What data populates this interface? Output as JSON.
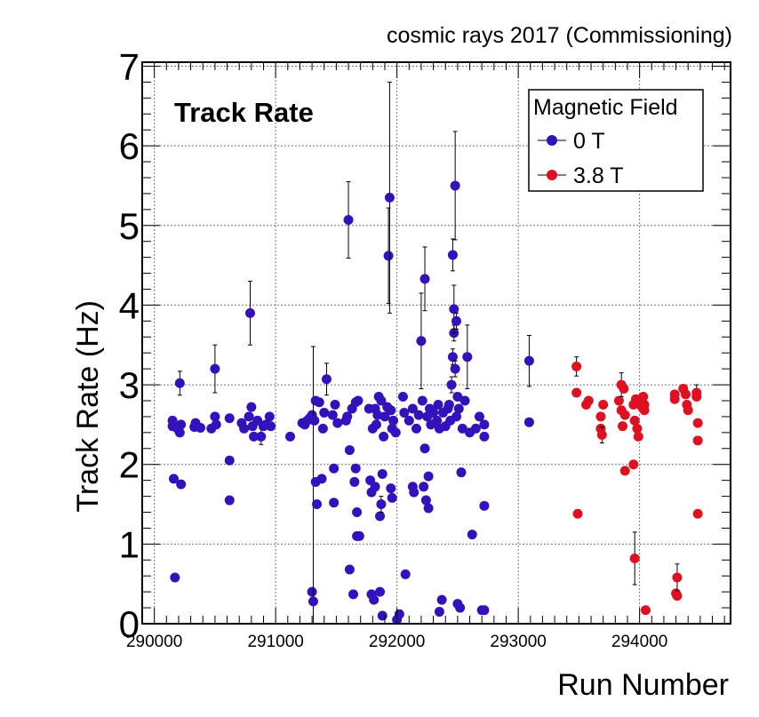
{
  "chart_data": {
    "type": "scatter",
    "title": "cosmic rays 2017 (Commissioning)",
    "annotation": "Track Rate",
    "xlabel": "Run Number",
    "ylabel": "Track Rate (Hz)",
    "xlim": [
      289900,
      294750
    ],
    "ylim": [
      0,
      7.05
    ],
    "xticks": [
      290000,
      291000,
      292000,
      293000,
      294000
    ],
    "xtick_labels": [
      "290000",
      "291000",
      "292000",
      "293000",
      "294000"
    ],
    "yticks": [
      0,
      1,
      2,
      3,
      4,
      5,
      6,
      7
    ],
    "ytick_labels": [
      "0",
      "1",
      "2",
      "3",
      "4",
      "5",
      "6",
      "7"
    ],
    "grid": true,
    "legend": {
      "title": "Magnetic Field",
      "position": "top-right",
      "entries": [
        "0 T",
        "3.8 T"
      ]
    },
    "series": [
      {
        "name": "0 T",
        "color": "#3311bb",
        "points": [
          [
            290150,
            2.48,
            0.05
          ],
          [
            290150,
            2.55,
            0.05
          ],
          [
            290160,
            1.82,
            0.05
          ],
          [
            290170,
            0.58,
            0.03
          ],
          [
            290190,
            2.45,
            0.05
          ],
          [
            290210,
            2.4,
            0.05
          ],
          [
            290210,
            3.02,
            0.15
          ],
          [
            290220,
            1.75,
            0.05
          ],
          [
            290220,
            2.5,
            0.05
          ],
          [
            290330,
            2.47,
            0.05
          ],
          [
            290340,
            2.52,
            0.05
          ],
          [
            290380,
            2.46,
            0.05
          ],
          [
            290470,
            2.45,
            0.05
          ],
          [
            290500,
            2.6,
            0.05
          ],
          [
            290500,
            3.2,
            0.3
          ],
          [
            290510,
            2.5,
            0.05
          ],
          [
            290620,
            2.58,
            0.05
          ],
          [
            290620,
            2.05,
            0.05
          ],
          [
            290620,
            1.55,
            0.05
          ],
          [
            290720,
            2.52,
            0.05
          ],
          [
            290740,
            2.45,
            0.05
          ],
          [
            290780,
            2.6,
            0.05
          ],
          [
            290790,
            3.9,
            0.4
          ],
          [
            290800,
            2.72,
            0.05
          ],
          [
            290810,
            2.48,
            0.05
          ],
          [
            290820,
            2.35,
            0.05
          ],
          [
            290850,
            2.55,
            0.05
          ],
          [
            290880,
            2.35,
            0.1
          ],
          [
            290900,
            2.48,
            0.05
          ],
          [
            290920,
            2.5,
            0.05
          ],
          [
            290950,
            2.6,
            0.05
          ],
          [
            290960,
            2.48,
            0.05
          ],
          [
            291120,
            2.35,
            0.05
          ],
          [
            291220,
            2.52,
            0.05
          ],
          [
            291240,
            2.5,
            0.05
          ],
          [
            291260,
            2.55,
            0.05
          ],
          [
            291280,
            2.58,
            0.05
          ],
          [
            291300,
            2.62,
            0.05
          ],
          [
            291300,
            0.4,
            0.05
          ],
          [
            291310,
            0.28,
            3.2
          ],
          [
            291320,
            2.55,
            0.05
          ],
          [
            291330,
            2.8,
            0.05
          ],
          [
            291330,
            1.78,
            0.05
          ],
          [
            291340,
            1.5,
            0.05
          ],
          [
            291360,
            2.78,
            0.05
          ],
          [
            291380,
            1.82,
            0.05
          ],
          [
            291390,
            2.45,
            0.05
          ],
          [
            291400,
            2.65,
            0.05
          ],
          [
            291420,
            3.07,
            0.2
          ],
          [
            291470,
            2.62,
            0.05
          ],
          [
            291480,
            1.52,
            0.05
          ],
          [
            291480,
            1.95,
            0.05
          ],
          [
            291490,
            2.75,
            0.05
          ],
          [
            291510,
            2.52,
            0.05
          ],
          [
            291580,
            2.55,
            0.05
          ],
          [
            291590,
            2.6,
            0.05
          ],
          [
            291600,
            5.07,
            0.48
          ],
          [
            291610,
            0.68,
            0.05
          ],
          [
            291610,
            2.18,
            0.05
          ],
          [
            291630,
            2.7,
            0.05
          ],
          [
            291640,
            0.37,
            0.05
          ],
          [
            291650,
            1.78,
            0.05
          ],
          [
            291660,
            2.78,
            0.05
          ],
          [
            291660,
            1.95,
            0.05
          ],
          [
            291670,
            1.1,
            0.05
          ],
          [
            291670,
            1.4,
            0.05
          ],
          [
            291680,
            2.8,
            0.05
          ],
          [
            291690,
            1.1,
            0.05
          ],
          [
            291770,
            2.7,
            0.05
          ],
          [
            291780,
            1.8,
            0.05
          ],
          [
            291790,
            0.37,
            0.05
          ],
          [
            291790,
            1.65,
            0.05
          ],
          [
            291800,
            2.45,
            0.05
          ],
          [
            291810,
            0.3,
            0.05
          ],
          [
            291820,
            2.7,
            0.05
          ],
          [
            291820,
            1.72,
            0.05
          ],
          [
            291830,
            2.5,
            0.05
          ],
          [
            291840,
            2.62,
            0.05
          ],
          [
            291850,
            2.85,
            0.05
          ],
          [
            291860,
            0.4,
            0.05
          ],
          [
            291860,
            1.35,
            0.05
          ],
          [
            291870,
            2.8,
            0.05
          ],
          [
            291870,
            1.5,
            0.1
          ],
          [
            291880,
            0.1,
            0.05
          ],
          [
            291880,
            1.88,
            0.05
          ],
          [
            291890,
            2.35,
            0.05
          ],
          [
            291900,
            2.6,
            0.05
          ],
          [
            291920,
            2.72,
            0.05
          ],
          [
            291930,
            4.62,
            0.6
          ],
          [
            291940,
            5.35,
            1.45
          ],
          [
            291950,
            2.68,
            0.05
          ],
          [
            291950,
            1.7,
            0.05
          ],
          [
            291960,
            2.45,
            0.05
          ],
          [
            291960,
            1.58,
            0.05
          ],
          [
            291970,
            2.55,
            0.05
          ],
          [
            291990,
            2.4,
            0.05
          ],
          [
            292000,
            0.05,
            0.05
          ],
          [
            292020,
            0.12,
            0.05
          ],
          [
            292050,
            2.85,
            0.05
          ],
          [
            292060,
            2.65,
            0.05
          ],
          [
            292070,
            0.62,
            0.05
          ],
          [
            292100,
            2.55,
            0.05
          ],
          [
            292130,
            2.7,
            0.05
          ],
          [
            292130,
            1.72,
            0.05
          ],
          [
            292140,
            1.65,
            0.05
          ],
          [
            292160,
            2.45,
            0.05
          ],
          [
            292180,
            2.62,
            0.05
          ],
          [
            292200,
            3.55,
            0.6
          ],
          [
            292210,
            2.8,
            0.05
          ],
          [
            292220,
            1.72,
            0.05
          ],
          [
            292230,
            4.33,
            0.4
          ],
          [
            292230,
            2.2,
            0.05
          ],
          [
            292240,
            1.55,
            0.05
          ],
          [
            292250,
            2.6,
            0.05
          ],
          [
            292260,
            1.85,
            0.05
          ],
          [
            292260,
            1.45,
            0.05
          ],
          [
            292270,
            2.7,
            0.05
          ],
          [
            292280,
            2.5,
            0.05
          ],
          [
            292300,
            2.65,
            0.05
          ],
          [
            292330,
            2.55,
            0.05
          ],
          [
            292340,
            2.75,
            0.05
          ],
          [
            292350,
            2.45,
            0.05
          ],
          [
            292350,
            0.15,
            0.05
          ],
          [
            292370,
            0.3,
            0.05
          ],
          [
            292380,
            2.65,
            0.05
          ],
          [
            292400,
            2.48,
            0.05
          ],
          [
            292420,
            2.7,
            0.05
          ],
          [
            292430,
            2.75,
            0.05
          ],
          [
            292440,
            2.55,
            0.05
          ],
          [
            292450,
            3.0,
            0.1
          ],
          [
            292460,
            3.35,
            0.1
          ],
          [
            292460,
            4.63,
            0.2
          ],
          [
            292470,
            3.65,
            0.1
          ],
          [
            292470,
            3.95,
            0.3
          ],
          [
            292480,
            5.5,
            0.68
          ],
          [
            292480,
            3.2,
            0.1
          ],
          [
            292490,
            3.8,
            0.1
          ],
          [
            292490,
            2.6,
            0.05
          ],
          [
            292500,
            0.25,
            0.05
          ],
          [
            292500,
            2.85,
            0.05
          ],
          [
            292510,
            2.7,
            0.05
          ],
          [
            292520,
            0.2,
            0.05
          ],
          [
            292530,
            1.9,
            0.05
          ],
          [
            292540,
            2.45,
            0.05
          ],
          [
            292560,
            2.8,
            0.05
          ],
          [
            292580,
            3.35,
            0.4
          ],
          [
            292600,
            2.4,
            0.05
          ],
          [
            292620,
            1.12,
            0.05
          ],
          [
            292650,
            2.45,
            0.05
          ],
          [
            292680,
            2.6,
            0.05
          ],
          [
            292700,
            0.17,
            0.05
          ],
          [
            292720,
            2.5,
            0.05
          ],
          [
            292720,
            2.35,
            0.05
          ],
          [
            292720,
            1.48,
            0.05
          ],
          [
            292720,
            0.17,
            0.05
          ],
          [
            293090,
            3.3,
            0.32
          ],
          [
            293090,
            2.53,
            0.05
          ]
        ]
      },
      {
        "name": "3.8 T",
        "color": "#dd1122",
        "points": [
          [
            293480,
            3.23,
            0.12
          ],
          [
            293480,
            2.9,
            0.05
          ],
          [
            293490,
            1.38,
            0.05
          ],
          [
            293560,
            2.75,
            0.05
          ],
          [
            293580,
            2.8,
            0.05
          ],
          [
            293680,
            2.6,
            0.05
          ],
          [
            293680,
            2.45,
            0.05
          ],
          [
            293690,
            2.37,
            0.1
          ],
          [
            293700,
            2.75,
            0.05
          ],
          [
            293830,
            2.8,
            0.05
          ],
          [
            293850,
            3.0,
            0.15
          ],
          [
            293850,
            2.68,
            0.05
          ],
          [
            293860,
            2.48,
            0.05
          ],
          [
            293870,
            2.95,
            0.05
          ],
          [
            293880,
            2.62,
            0.05
          ],
          [
            293880,
            1.92,
            0.05
          ],
          [
            293950,
            2.75,
            0.05
          ],
          [
            293950,
            2.0,
            0.05
          ],
          [
            293960,
            0.82,
            0.33
          ],
          [
            293960,
            2.55,
            0.05
          ],
          [
            293970,
            2.82,
            0.05
          ],
          [
            293980,
            2.45,
            0.05
          ],
          [
            293990,
            2.35,
            0.05
          ],
          [
            294000,
            2.8,
            0.05
          ],
          [
            294020,
            2.72,
            0.05
          ],
          [
            294030,
            2.85,
            0.05
          ],
          [
            294040,
            2.75,
            0.05
          ],
          [
            294040,
            2.68,
            0.05
          ],
          [
            294050,
            0.17,
            0.05
          ],
          [
            294290,
            2.88,
            0.05
          ],
          [
            294290,
            2.82,
            0.05
          ],
          [
            294300,
            0.38,
            0.05
          ],
          [
            294310,
            0.58,
            0.17
          ],
          [
            294310,
            0.35,
            0.05
          ],
          [
            294360,
            2.95,
            0.05
          ],
          [
            294380,
            2.88,
            0.05
          ],
          [
            294390,
            2.75,
            0.05
          ],
          [
            294400,
            2.68,
            0.05
          ],
          [
            294470,
            2.9,
            0.1
          ],
          [
            294470,
            2.85,
            0.05
          ],
          [
            294480,
            2.52,
            0.05
          ],
          [
            294480,
            2.3,
            0.05
          ],
          [
            294480,
            1.38,
            0.05
          ]
        ]
      }
    ]
  }
}
